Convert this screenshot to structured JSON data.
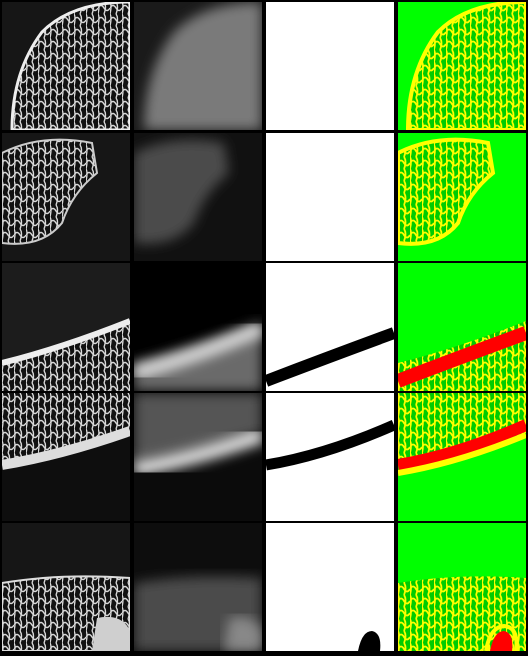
{
  "figure": {
    "rows": 5,
    "columns": 4,
    "column_kinds": [
      "micro-ct-slice",
      "blurred-slice",
      "binary-mask",
      "segmentation-overlay"
    ],
    "colors": {
      "background": "#000000",
      "segmentation_background": "#00ff00",
      "trabecular": "#ffff00",
      "cortical": "#ff0000",
      "mask_foreground": "#ffffff",
      "mask_region": "#000000"
    },
    "panels": [
      {
        "row": 1,
        "has_cortical": false
      },
      {
        "row": 2,
        "has_cortical": false
      },
      {
        "row": 3,
        "has_cortical": true
      },
      {
        "row": 4,
        "has_cortical": true
      },
      {
        "row": 5,
        "has_cortical": false
      }
    ]
  }
}
